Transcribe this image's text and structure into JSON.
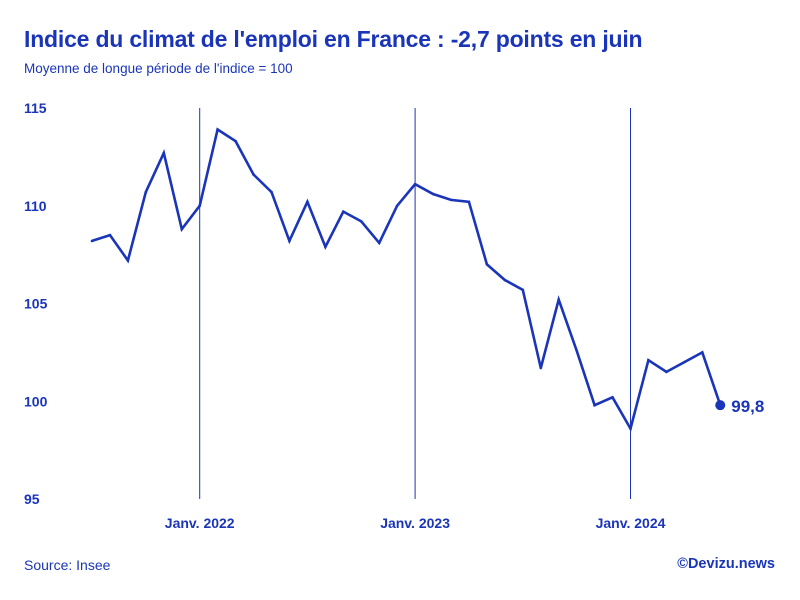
{
  "title": "Indice du climat de l'emploi en France : -2,7 points en juin",
  "subtitle": "Moyenne de longue période de l'indice = 100",
  "source": "Source: Insee",
  "brand": "©Devizu.news",
  "colors": {
    "accent": "#1a35b8"
  },
  "chart_data": {
    "type": "line",
    "title": "Indice du climat de l'emploi en France : -2,7 points en juin",
    "xlabel": "",
    "ylabel": "",
    "ylim": [
      95,
      115
    ],
    "yticks": [
      95,
      100,
      105,
      110,
      115
    ],
    "ytick_labels": [
      "95",
      "100",
      "105",
      "110",
      "115"
    ],
    "x": [
      "2021-07",
      "2021-08",
      "2021-09",
      "2021-10",
      "2021-11",
      "2021-12",
      "2022-01",
      "2022-02",
      "2022-03",
      "2022-04",
      "2022-05",
      "2022-06",
      "2022-07",
      "2022-08",
      "2022-09",
      "2022-10",
      "2022-11",
      "2022-12",
      "2023-01",
      "2023-02",
      "2023-03",
      "2023-04",
      "2023-05",
      "2023-06",
      "2023-07",
      "2023-08",
      "2023-09",
      "2023-10",
      "2023-11",
      "2023-12",
      "2024-01",
      "2024-02",
      "2024-03",
      "2024-04",
      "2024-05",
      "2024-06"
    ],
    "xticks": [
      "2022-01",
      "2023-01",
      "2024-01"
    ],
    "xtick_labels": [
      "Janv. 2022",
      "Janv. 2023",
      "Janv. 2024"
    ],
    "vlines": [
      "2022-01",
      "2023-01",
      "2024-01"
    ],
    "series": [
      {
        "values": [
          108.2,
          108.5,
          107.2,
          110.7,
          112.7,
          108.8,
          110.0,
          113.9,
          113.3,
          111.6,
          110.7,
          108.2,
          110.2,
          107.9,
          109.7,
          109.2,
          108.1,
          110.0,
          111.1,
          110.6,
          110.3,
          110.2,
          107.0,
          106.2,
          105.7,
          101.7,
          105.2,
          102.6,
          99.8,
          100.2,
          98.6,
          102.1,
          101.5,
          102.0,
          102.5,
          99.8
        ]
      }
    ],
    "last_point_label": "99,8",
    "grid": false,
    "legend": "none"
  }
}
